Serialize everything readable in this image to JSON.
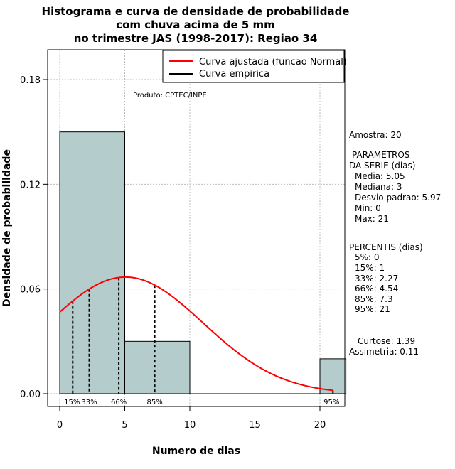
{
  "chart_data": {
    "type": "histogram",
    "title_lines": [
      "Histograma e curva de densidade de probabilidade",
      "com chuva acima de 5 mm",
      "no trimestre JAS (1998-2017): Regiao 34"
    ],
    "xlabel": "Numero de dias",
    "ylabel": "Densidade de probabilidade",
    "xlim": [
      -1,
      22
    ],
    "ylim": [
      0,
      0.2
    ],
    "x_ticks": [
      0,
      5,
      10,
      15,
      20
    ],
    "y_ticks": [
      0.0,
      0.06,
      0.12,
      0.18
    ],
    "x_tick_labels": [
      "0",
      "5",
      "10",
      "15",
      "20"
    ],
    "y_tick_labels": [
      "0.00",
      "0.06",
      "0.12",
      "0.18"
    ],
    "grid": true,
    "bars": [
      {
        "x0": 0,
        "x1": 5,
        "density": 0.15
      },
      {
        "x0": 5,
        "x1": 10,
        "density": 0.03
      },
      {
        "x0": 10,
        "x1": 15,
        "density": 0.0
      },
      {
        "x0": 15,
        "x1": 20,
        "density": 0.0
      },
      {
        "x0": 20,
        "x1": 22,
        "density": 0.02
      }
    ],
    "normal_curve": {
      "mean": 5.05,
      "sd": 5.97,
      "x_from": 0,
      "x_to": 21,
      "color": "#ff0000"
    },
    "percentile_lines": [
      {
        "x": 1,
        "label": "15%"
      },
      {
        "x": 2.27,
        "label": "33%"
      },
      {
        "x": 4.54,
        "label": "66%"
      },
      {
        "x": 7.3,
        "label": "85%"
      },
      {
        "x": 21,
        "label": "95%"
      }
    ],
    "legend": {
      "position": "top-right",
      "entries": [
        {
          "label": "Curva ajustada (funcao Normal)",
          "color": "#ff0000"
        },
        {
          "label": "Curva empirica",
          "color": "#000000"
        }
      ]
    },
    "annotation": "Produto: CPTEC/INPE",
    "bar_color": "#b4cccc"
  },
  "stats": {
    "amostra": "Amostra: 20",
    "param_title_1": "PARAMETROS",
    "param_title_2": "DA SERIE (dias)",
    "media": "Media: 5.05",
    "mediana": "Mediana: 3",
    "desvio": "Desvio padrao: 5.97",
    "min": "Min: 0",
    "max": "Max: 21",
    "perc_title": "PERCENTIS (dias)",
    "p5": "5%: 0",
    "p15": "15%: 1",
    "p33": "33%: 2.27",
    "p66": "66%: 4.54",
    "p85": "85%: 7.3",
    "p95": "95%: 21",
    "curtose": "Curtose: 1.39",
    "assimetria": "Assimetria: 0.11"
  }
}
